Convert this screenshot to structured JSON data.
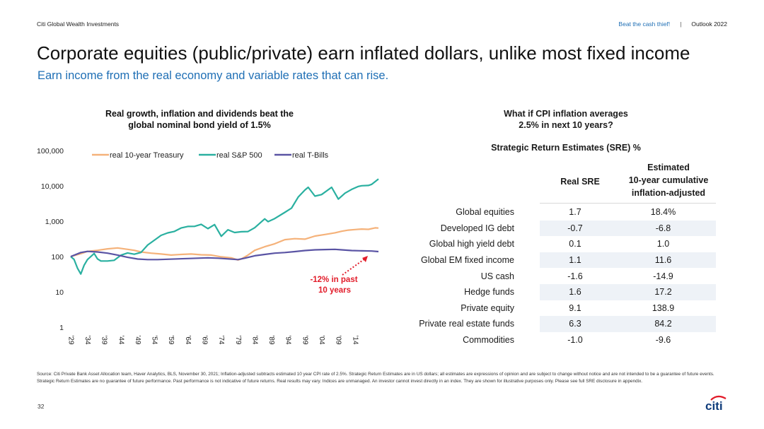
{
  "header": {
    "brand": "Citi Global Wealth Investments",
    "link": "Beat the cash thief!",
    "separator": "|",
    "outlook": "Outlook 2022"
  },
  "title": "Corporate equities (public/private) earn inflated dollars, unlike most fixed income",
  "subtitle": "Earn income from the real economy and variable rates that can rise.",
  "chart_data": {
    "type": "line",
    "title_line1": "Real growth, inflation and dividends beat the",
    "title_line2": "global nominal bond yield of 1.5%",
    "xlabel": "",
    "ylabel": "",
    "y_scale": "log",
    "ylim": [
      1,
      100000
    ],
    "xlim": [
      1929,
      2021
    ],
    "y_tick_labels": [
      "100,000",
      "10,000",
      "1,000",
      "100",
      "10",
      "1"
    ],
    "y_tick_values": [
      100000,
      10000,
      1000,
      100,
      10,
      1
    ],
    "x_tick_labels": [
      "'29",
      "'34",
      "'39",
      "'44",
      "'49",
      "'54",
      "'59",
      "'64",
      "'69",
      "'74",
      "'79",
      "'84",
      "'89",
      "'94",
      "'99",
      "'04",
      "'09",
      "'14"
    ],
    "x_tick_values": [
      1929,
      1934,
      1939,
      1944,
      1949,
      1954,
      1959,
      1964,
      1969,
      1974,
      1979,
      1984,
      1989,
      1994,
      1999,
      2004,
      2009,
      2014
    ],
    "legend_position": "top",
    "series": [
      {
        "name": "real 10-year Treasury",
        "color": "#f5b27a",
        "points": [
          [
            1929,
            100
          ],
          [
            1932,
            120
          ],
          [
            1934,
            140
          ],
          [
            1937,
            150
          ],
          [
            1940,
            165
          ],
          [
            1943,
            175
          ],
          [
            1946,
            160
          ],
          [
            1948,
            150
          ],
          [
            1950,
            135
          ],
          [
            1953,
            125
          ],
          [
            1956,
            118
          ],
          [
            1959,
            110
          ],
          [
            1962,
            115
          ],
          [
            1965,
            118
          ],
          [
            1968,
            112
          ],
          [
            1971,
            110
          ],
          [
            1974,
            98
          ],
          [
            1977,
            92
          ],
          [
            1979,
            80
          ],
          [
            1980,
            85
          ],
          [
            1982,
            110
          ],
          [
            1984,
            150
          ],
          [
            1987,
            190
          ],
          [
            1990,
            230
          ],
          [
            1993,
            300
          ],
          [
            1996,
            320
          ],
          [
            1999,
            310
          ],
          [
            2002,
            380
          ],
          [
            2005,
            420
          ],
          [
            2008,
            470
          ],
          [
            2010,
            520
          ],
          [
            2012,
            560
          ],
          [
            2014,
            580
          ],
          [
            2016,
            600
          ],
          [
            2018,
            590
          ],
          [
            2020,
            650
          ],
          [
            2021,
            640
          ]
        ]
      },
      {
        "name": "real S&P 500",
        "color": "#2ab0a0",
        "points": [
          [
            1929,
            100
          ],
          [
            1930,
            80
          ],
          [
            1931,
            50
          ],
          [
            1932,
            30
          ],
          [
            1933,
            60
          ],
          [
            1934,
            80
          ],
          [
            1936,
            120
          ],
          [
            1937,
            90
          ],
          [
            1938,
            70
          ],
          [
            1940,
            80
          ],
          [
            1942,
            75
          ],
          [
            1944,
            110
          ],
          [
            1946,
            130
          ],
          [
            1948,
            110
          ],
          [
            1950,
            140
          ],
          [
            1952,
            200
          ],
          [
            1954,
            300
          ],
          [
            1956,
            400
          ],
          [
            1958,
            450
          ],
          [
            1960,
            550
          ],
          [
            1962,
            600
          ],
          [
            1964,
            750
          ],
          [
            1966,
            700
          ],
          [
            1968,
            800
          ],
          [
            1970,
            650
          ],
          [
            1972,
            750
          ],
          [
            1974,
            400
          ],
          [
            1976,
            550
          ],
          [
            1978,
            480
          ],
          [
            1980,
            520
          ],
          [
            1982,
            480
          ],
          [
            1984,
            700
          ],
          [
            1987,
            1100
          ],
          [
            1988,
            1000
          ],
          [
            1990,
            1200
          ],
          [
            1993,
            1700
          ],
          [
            1995,
            2500
          ],
          [
            1997,
            4500
          ],
          [
            1999,
            8000
          ],
          [
            2000,
            9000
          ],
          [
            2002,
            5000
          ],
          [
            2004,
            6000
          ],
          [
            2007,
            8500
          ],
          [
            2009,
            4500
          ],
          [
            2011,
            6000
          ],
          [
            2013,
            8000
          ],
          [
            2015,
            10000
          ],
          [
            2016,
            9500
          ],
          [
            2018,
            11000
          ],
          [
            2019,
            10500
          ],
          [
            2021,
            16000
          ]
        ]
      },
      {
        "name": "real T-Bills",
        "color": "#5a54a4",
        "points": [
          [
            1929,
            100
          ],
          [
            1932,
            130
          ],
          [
            1934,
            140
          ],
          [
            1937,
            135
          ],
          [
            1940,
            125
          ],
          [
            1943,
            110
          ],
          [
            1946,
            95
          ],
          [
            1949,
            85
          ],
          [
            1952,
            82
          ],
          [
            1955,
            82
          ],
          [
            1958,
            84
          ],
          [
            1961,
            86
          ],
          [
            1964,
            88
          ],
          [
            1967,
            90
          ],
          [
            1970,
            92
          ],
          [
            1973,
            90
          ],
          [
            1976,
            86
          ],
          [
            1979,
            82
          ],
          [
            1981,
            90
          ],
          [
            1984,
            105
          ],
          [
            1987,
            115
          ],
          [
            1990,
            125
          ],
          [
            1993,
            130
          ],
          [
            1996,
            138
          ],
          [
            1999,
            148
          ],
          [
            2002,
            155
          ],
          [
            2005,
            158
          ],
          [
            2008,
            160
          ],
          [
            2010,
            155
          ],
          [
            2013,
            148
          ],
          [
            2016,
            145
          ],
          [
            2019,
            143
          ],
          [
            2021,
            138
          ]
        ]
      }
    ],
    "annotation": {
      "line1": "-12% in past",
      "line2": "10 years",
      "color": "#e21c2a"
    }
  },
  "right_panel": {
    "question_line1": "What if CPI inflation averages",
    "question_line2": "2.5% in next 10 years?",
    "table_title": "Strategic Return Estimates (SRE) %",
    "col1": "Real SRE",
    "col2_line1": "Estimated",
    "col2_line2": "10-year cumulative",
    "col2_line3": "inflation-adjusted",
    "rows": [
      {
        "label": "Global equities",
        "sre": "1.7",
        "cum": "18.4%"
      },
      {
        "label": "Developed IG debt",
        "sre": "-0.7",
        "cum": "-6.8"
      },
      {
        "label": "Global high yield debt",
        "sre": "0.1",
        "cum": "1.0"
      },
      {
        "label": "Global EM fixed income",
        "sre": "1.1",
        "cum": "11.6"
      },
      {
        "label": "US cash",
        "sre": "-1.6",
        "cum": "-14.9"
      },
      {
        "label": "Hedge funds",
        "sre": "1.6",
        "cum": "17.2"
      },
      {
        "label": "Private equity",
        "sre": "9.1",
        "cum": "138.9"
      },
      {
        "label": "Private real estate funds",
        "sre": "6.3",
        "cum": "84.2"
      },
      {
        "label": "Commodities",
        "sre": "-1.0",
        "cum": "-9.6"
      }
    ]
  },
  "source_text": "Source: Citi Private Bank Asset Allocation team, Haver Analytics, BLS, November 30, 2021; Inflation-adjusted subtracts estimated 10 year CPI rate of 2.5%. Strategic Return Estimates are in US dollars; all estimates are expressions of opinion and are subject to change without notice and are not intended to be a guarantee of future events. Strategic Return Estimates are no guarantee of future performance. Past performance is not indicative of future returns. Real results may vary. Indices are unmanaged. An investor cannot invest directly in an index. They are shown for illustrative purposes only. Please see full SRE disclosure in appendix.",
  "page_number": "32",
  "logo_text": "citi",
  "logo_color": "#0f3c7b",
  "logo_arc_color": "#e21c2a"
}
